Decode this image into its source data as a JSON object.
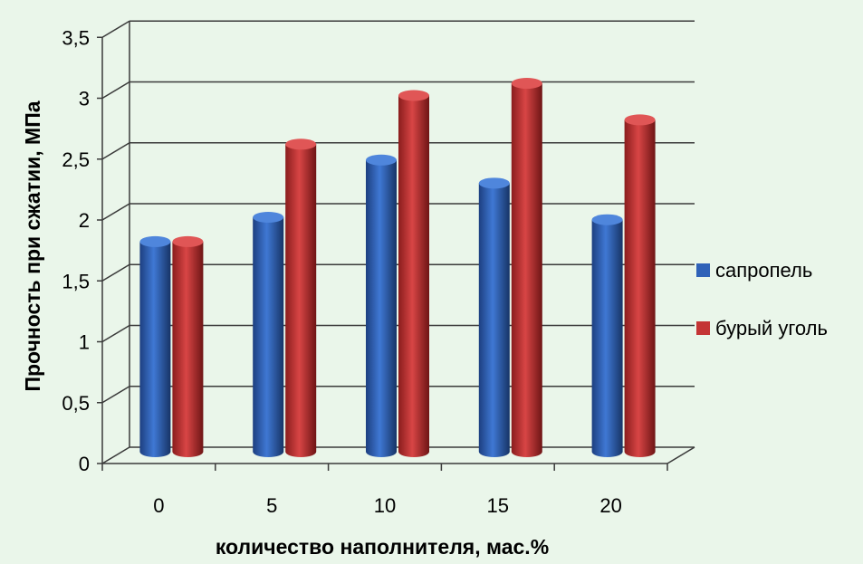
{
  "chart_data": {
    "type": "bar",
    "categories": [
      "0",
      "5",
      "10",
      "15",
      "20"
    ],
    "series": [
      {
        "name": "сапропель",
        "color": "#2f62b8",
        "values": [
          1.8,
          2.0,
          2.47,
          2.28,
          1.98
        ]
      },
      {
        "name": "бурый уголь",
        "color": "#c43535",
        "values": [
          1.8,
          2.6,
          3.0,
          3.1,
          2.8
        ]
      }
    ],
    "ylim": [
      0,
      3.5
    ],
    "yticks": [
      "0",
      "0,5",
      "1",
      "1,5",
      "2",
      "2,5",
      "3",
      "3,5"
    ],
    "xlabel": "количество наполнителя, мас.%",
    "ylabel": "Прочность при сжатии, МПа",
    "legend_position": "right",
    "grid": true
  }
}
